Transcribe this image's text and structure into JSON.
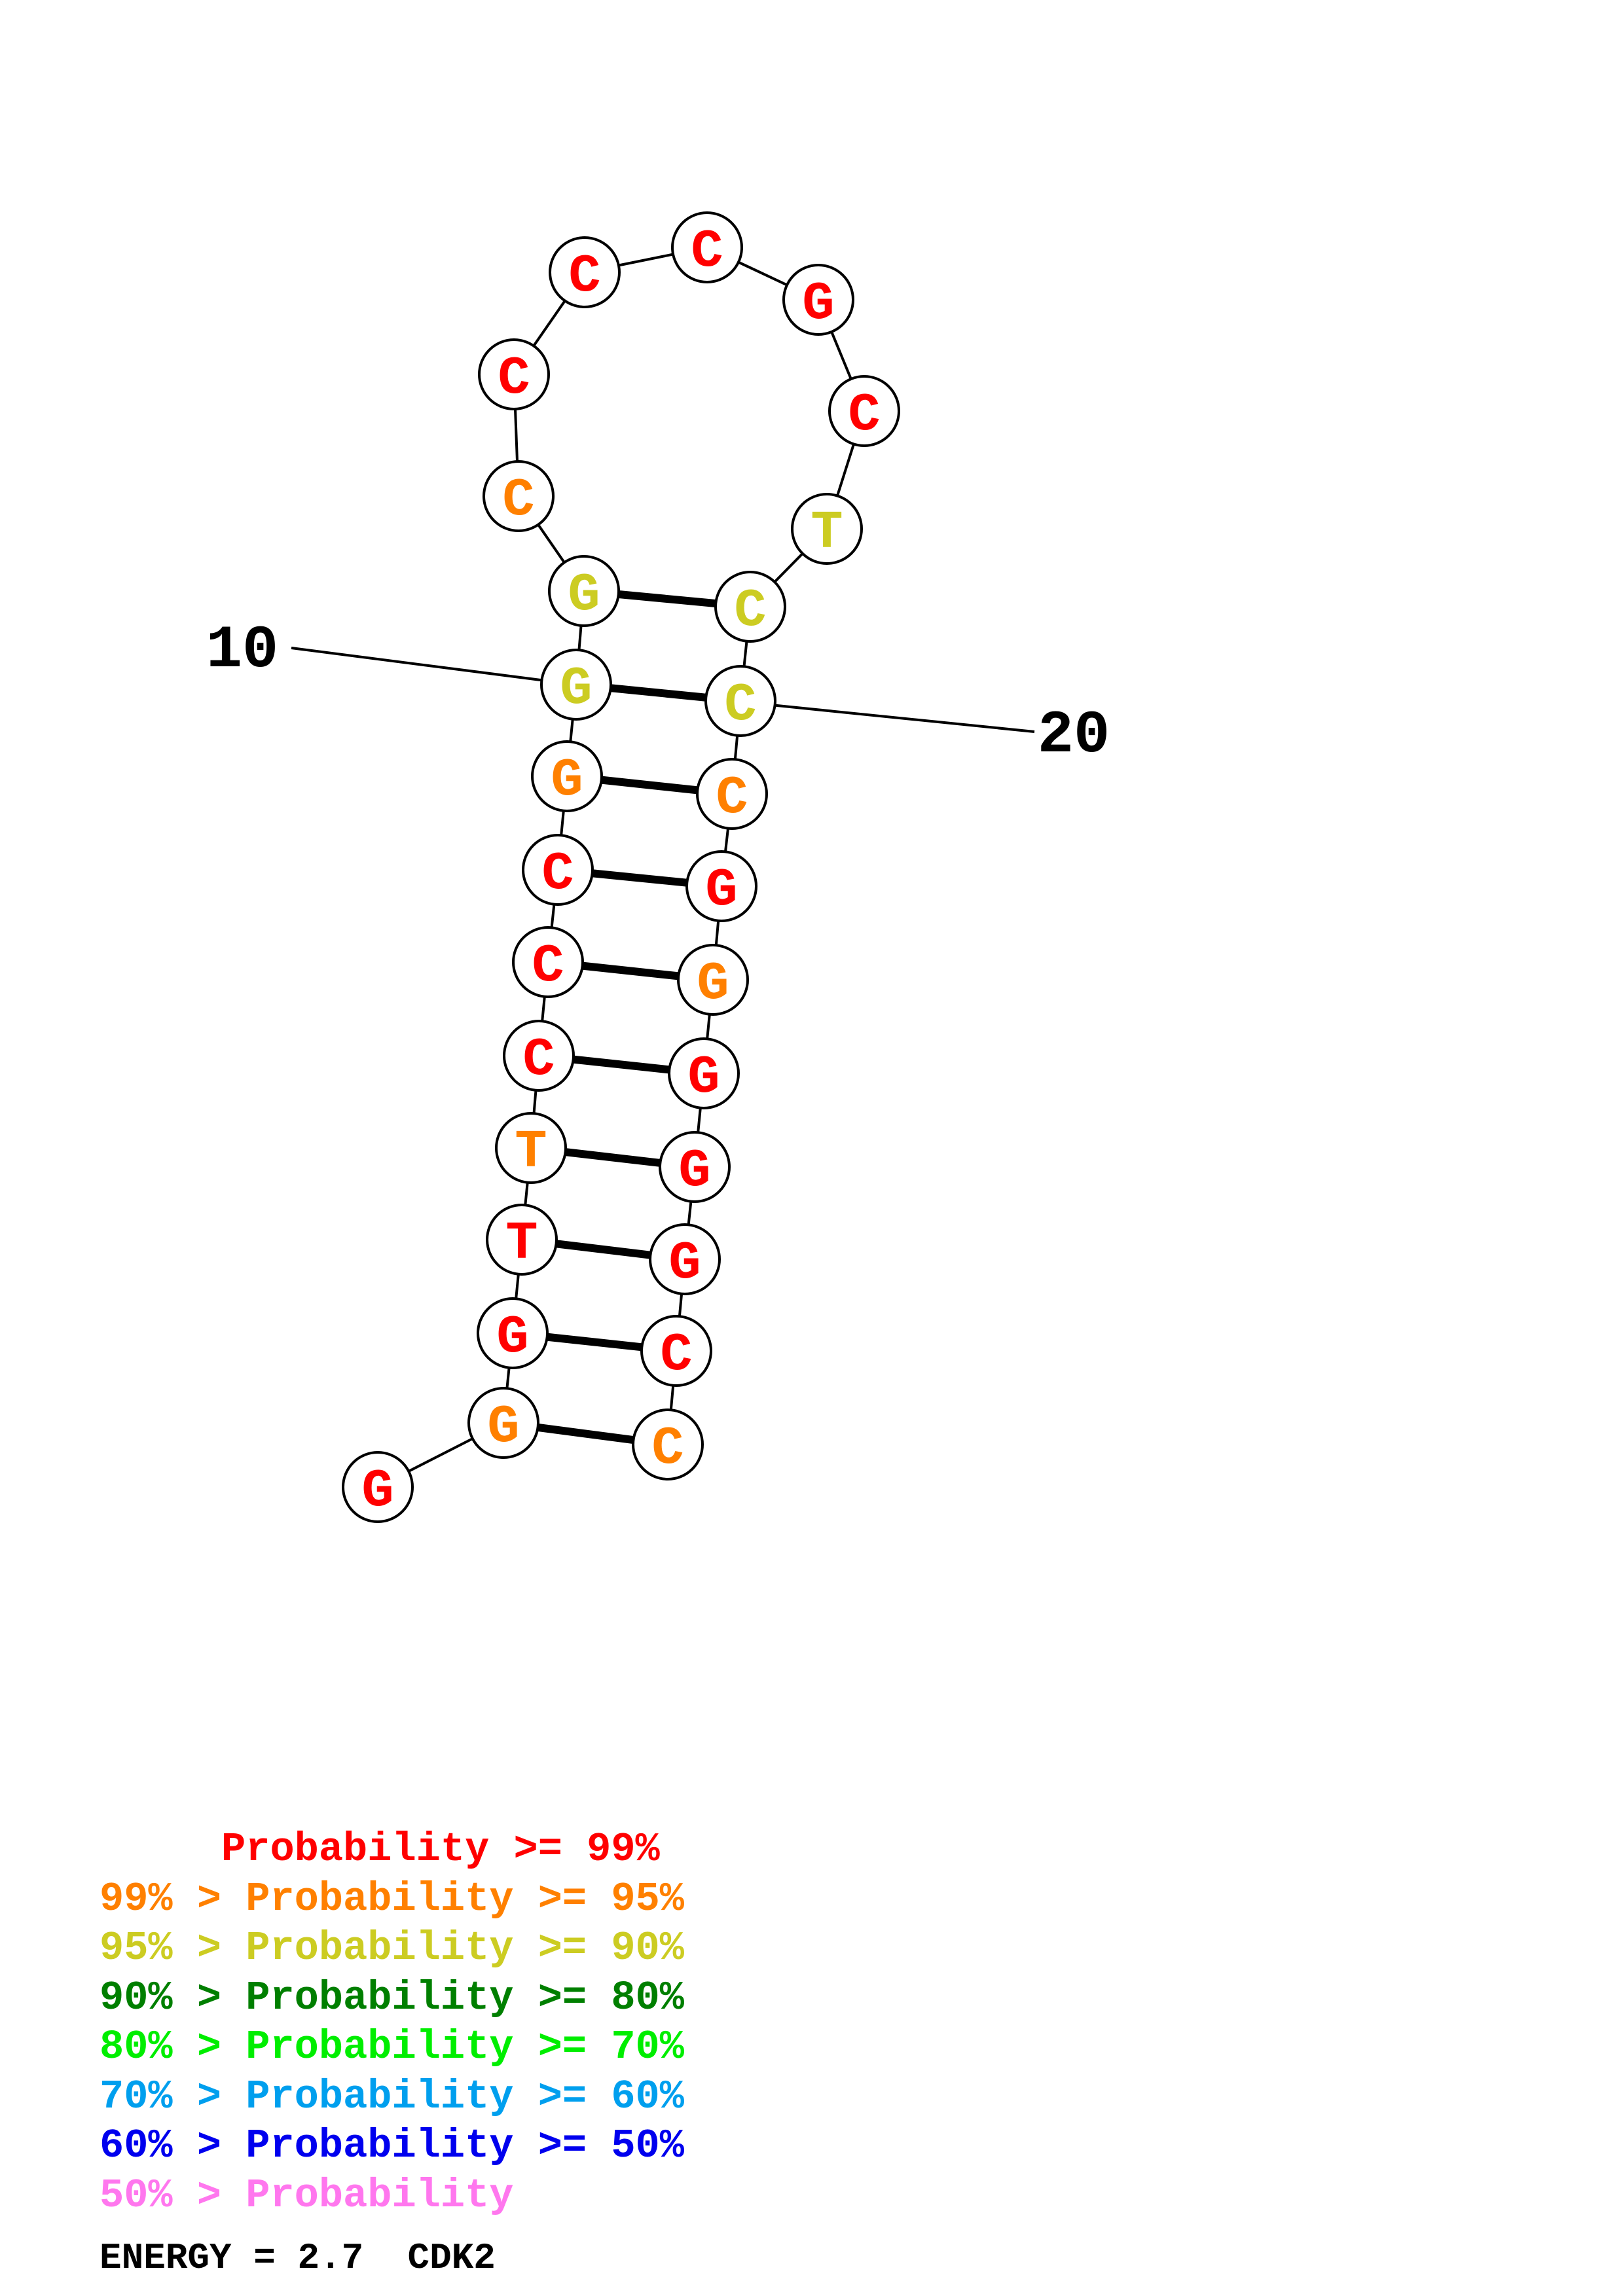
{
  "colors": {
    "p99": "#ff0000",
    "p95": "#ff8000",
    "p90": "#cccc22",
    "p80": "#007f00",
    "p70": "#00ee00",
    "p60": "#009fee",
    "p50": "#0000ee",
    "plow": "#ff77ee"
  },
  "structure": {
    "bases": [
      {
        "n": "G",
        "c": "p99"
      },
      {
        "n": "G",
        "c": "p95"
      },
      {
        "n": "G",
        "c": "p99"
      },
      {
        "n": "T",
        "c": "p99"
      },
      {
        "n": "T",
        "c": "p95"
      },
      {
        "n": "C",
        "c": "p99"
      },
      {
        "n": "C",
        "c": "p99"
      },
      {
        "n": "C",
        "c": "p99"
      },
      {
        "n": "G",
        "c": "p95"
      },
      {
        "n": "G",
        "c": "p90"
      },
      {
        "n": "G",
        "c": "p90"
      },
      {
        "n": "C",
        "c": "p95"
      },
      {
        "n": "C",
        "c": "p99"
      },
      {
        "n": "C",
        "c": "p99"
      },
      {
        "n": "C",
        "c": "p99"
      },
      {
        "n": "G",
        "c": "p99"
      },
      {
        "n": "C",
        "c": "p99"
      },
      {
        "n": "T",
        "c": "p90"
      },
      {
        "n": "C",
        "c": "p90"
      },
      {
        "n": "C",
        "c": "p90"
      },
      {
        "n": "C",
        "c": "p95"
      },
      {
        "n": "G",
        "c": "p99"
      },
      {
        "n": "G",
        "c": "p95"
      },
      {
        "n": "G",
        "c": "p99"
      },
      {
        "n": "G",
        "c": "p99"
      },
      {
        "n": "G",
        "c": "p99"
      },
      {
        "n": "C",
        "c": "p99"
      },
      {
        "n": "C",
        "c": "p95"
      }
    ],
    "pairs": [
      [
        2,
        28
      ],
      [
        3,
        27
      ],
      [
        4,
        26
      ],
      [
        5,
        25
      ],
      [
        6,
        24
      ],
      [
        7,
        23
      ],
      [
        8,
        22
      ],
      [
        9,
        21
      ],
      [
        10,
        20
      ],
      [
        11,
        19
      ]
    ],
    "position_labels": [
      {
        "base": 10,
        "text": "10"
      },
      {
        "base": 20,
        "text": "20"
      }
    ]
  },
  "legend": [
    {
      "text": "     Probability >= 99%",
      "c": "p99"
    },
    {
      "text": "99% > Probability >= 95%",
      "c": "p95"
    },
    {
      "text": "95% > Probability >= 90%",
      "c": "p90"
    },
    {
      "text": "90% > Probability >= 80%",
      "c": "p80"
    },
    {
      "text": "80% > Probability >= 70%",
      "c": "p70"
    },
    {
      "text": "70% > Probability >= 60%",
      "c": "p60"
    },
    {
      "text": "60% > Probability >= 50%",
      "c": "p50"
    },
    {
      "text": "50% > Probability",
      "c": "plow"
    }
  ],
  "footer": {
    "energy": "ENERGY = 2.7  CDK2"
  }
}
